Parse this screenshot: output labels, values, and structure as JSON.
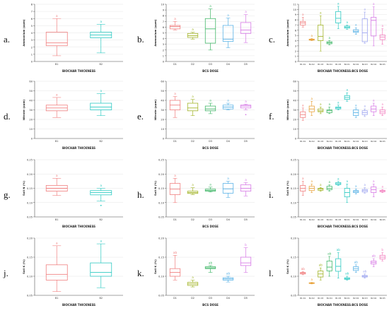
{
  "colors": {
    "axis": "#555555",
    "grid": "#e6e6e6",
    "g1": "#f08080",
    "g2": "#e8a33d",
    "g3": "#a3b52a",
    "g4": "#43b86a",
    "g5": "#2ec9c2",
    "g6": "#5ab2e6",
    "g7": "#9fa6f0",
    "g8": "#d77be6",
    "g9": "#f27fbf"
  },
  "chart_data": [
    {
      "panel": "a.",
      "type": "box",
      "xlabel": "BIOCHAR THICKNESS",
      "ylabel": "Ammonium (ppm)",
      "ylim": [
        0,
        8
      ],
      "yticks": [
        "0",
        "1",
        "2",
        "3",
        "4",
        "5",
        "6",
        "7",
        "8"
      ],
      "categories": [
        "B1",
        "B2"
      ],
      "boxes": [
        {
          "min": 0.8,
          "q1": 2.2,
          "median": 2.6,
          "q3": 4.1,
          "max": 6.0,
          "outliers": [],
          "letter": "a"
        },
        {
          "min": 1.2,
          "q1": 3.3,
          "median": 3.7,
          "q3": 4.1,
          "max": 5.2,
          "outliers": [],
          "letter": "a"
        }
      ]
    },
    {
      "panel": "b.",
      "type": "box",
      "xlabel": "BCS DOSE",
      "ylabel": "Ammonium (ppm)",
      "ylim": [
        0,
        10
      ],
      "yticks": [
        "0",
        "1",
        "2",
        "3",
        "4",
        "5",
        "6",
        "7",
        "8",
        "9",
        "10"
      ],
      "categories": [
        "D1",
        "D2",
        "D3",
        "D4",
        "D5"
      ],
      "boxes": [
        {
          "min": 5.5,
          "q1": 5.7,
          "median": 6.1,
          "q3": 6.3,
          "max": 7.0,
          "outliers": [],
          "letter": "a"
        },
        {
          "min": 3.9,
          "q1": 4.2,
          "median": 4.5,
          "q3": 4.9,
          "max": 5.1,
          "outliers": [],
          "letter": "a"
        },
        {
          "min": 2.0,
          "q1": 3.2,
          "median": 5.7,
          "q3": 7.5,
          "max": 9.2,
          "outliers": [],
          "letter": "a"
        },
        {
          "min": 2.4,
          "q1": 3.5,
          "median": 3.9,
          "q3": 6.3,
          "max": 7.6,
          "outliers": [],
          "letter": "a"
        },
        {
          "min": 3.3,
          "q1": 4.9,
          "median": 5.5,
          "q3": 6.8,
          "max": 8.2,
          "outliers": [],
          "letter": "a"
        }
      ]
    },
    {
      "panel": "c.",
      "type": "box",
      "xlabel": "BIOCHAR THICKNESS:BCS DOSE",
      "ylabel": "Ammonium (ppm)",
      "ylim": [
        0,
        11
      ],
      "yticks": [
        "0",
        "1",
        "2",
        "3",
        "4",
        "5",
        "6",
        "7",
        "8",
        "9",
        "10",
        "11"
      ],
      "categories": [
        "B1:D1",
        "B1:D2",
        "B1:D3",
        "B1:D4",
        "B1:D5",
        "B2:D1",
        "B2:D2",
        "B2:D3",
        "B2:D4",
        "B2:D5"
      ],
      "boxes": [
        {
          "min": 6.6,
          "q1": 7.0,
          "median": 7.4,
          "q3": 7.7,
          "max": 8.5,
          "outliers": [],
          "letter": "a"
        },
        {
          "min": 4.0,
          "q1": 4.1,
          "median": 4.2,
          "q3": 4.3,
          "max": 4.4,
          "outliers": [],
          "letter": "a"
        },
        {
          "min": 2.0,
          "q1": 4.0,
          "median": 4.8,
          "q3": 7.0,
          "max": 8.8,
          "outliers": [],
          "letter": "a"
        },
        {
          "min": 3.2,
          "q1": 3.4,
          "median": 3.6,
          "q3": 3.8,
          "max": 4.0,
          "outliers": [],
          "letter": "a"
        },
        {
          "min": 6.3,
          "q1": 7.4,
          "median": 8.3,
          "q3": 9.6,
          "max": 10.6,
          "outliers": [],
          "letter": "a"
        },
        {
          "min": 6.2,
          "q1": 6.4,
          "median": 6.6,
          "q3": 6.8,
          "max": 7.0,
          "outliers": [],
          "letter": "a"
        },
        {
          "min": 5.2,
          "q1": 5.6,
          "median": 5.8,
          "q3": 6.1,
          "max": 6.5,
          "outliers": [],
          "letter": "a"
        },
        {
          "min": 3.5,
          "q1": 3.8,
          "median": 5.5,
          "q3": 8.2,
          "max": 9.5,
          "outliers": [],
          "letter": "a"
        },
        {
          "min": 3.0,
          "q1": 4.9,
          "median": 7.9,
          "q3": 8.5,
          "max": 10.5,
          "outliers": [],
          "letter": "a"
        },
        {
          "min": 3.3,
          "q1": 4.2,
          "median": 4.7,
          "q3": 5.1,
          "max": 6.3,
          "outliers": [],
          "letter": "a"
        }
      ]
    },
    {
      "panel": "d.",
      "type": "box",
      "xlabel": "BIOCHAR THICKNESS",
      "ylabel": "Nitrate (ppm)",
      "ylim": [
        0,
        60
      ],
      "yticks": [
        "0",
        "10",
        "20",
        "30",
        "40",
        "50",
        "60"
      ],
      "categories": [
        "B1",
        "B2"
      ],
      "boxes": [
        {
          "min": 22,
          "q1": 29,
          "median": 32,
          "q3": 35,
          "max": 43,
          "outliers": [],
          "letter": "a"
        },
        {
          "min": 24,
          "q1": 30,
          "median": 33,
          "q3": 37,
          "max": 47,
          "outliers": [],
          "letter": "a"
        }
      ]
    },
    {
      "panel": "e.",
      "type": "box",
      "xlabel": "BCS DOSE",
      "ylabel": "Nitrate (ppm)",
      "ylim": [
        0,
        60
      ],
      "yticks": [
        "0",
        "10",
        "20",
        "30",
        "40",
        "50",
        "60"
      ],
      "categories": [
        "D1",
        "D2",
        "D3",
        "D4",
        "D5"
      ],
      "boxes": [
        {
          "min": 22,
          "q1": 30,
          "median": 35,
          "q3": 40,
          "max": 44,
          "outliers": [],
          "letter": "a"
        },
        {
          "min": 24,
          "q1": 29,
          "median": 32,
          "q3": 37,
          "max": 41,
          "outliers": [],
          "letter": "a"
        },
        {
          "min": 26,
          "q1": 29,
          "median": 31,
          "q3": 34,
          "max": 37,
          "outliers": [],
          "letter": "a"
        },
        {
          "min": 30,
          "q1": 31,
          "median": 33,
          "q3": 35,
          "max": 37,
          "outliers": [],
          "letter": "a"
        },
        {
          "min": 30,
          "q1": 32,
          "median": 34,
          "q3": 35,
          "max": 36,
          "outliers": [
            25
          ],
          "letter": "a"
        }
      ]
    },
    {
      "panel": "f.",
      "type": "box",
      "xlabel": "BIOCHAR THICKNESS:BCS DOSE",
      "ylabel": "Nitrate (ppm)",
      "ylim": [
        0,
        60
      ],
      "yticks": [
        "0",
        "10",
        "20",
        "30",
        "40",
        "50",
        "60"
      ],
      "categories": [
        "B1:D1",
        "B1:D2",
        "B1:D3",
        "B1:D4",
        "B1:D5",
        "B2:D1",
        "B2:D2",
        "B2:D3",
        "B2:D4",
        "B2:D5"
      ],
      "boxes": [
        {
          "min": 19,
          "q1": 22,
          "median": 25,
          "q3": 28,
          "max": 32,
          "outliers": [],
          "letter": "a"
        },
        {
          "min": 24,
          "q1": 28,
          "median": 31,
          "q3": 34,
          "max": 39,
          "outliers": [],
          "letter": "a"
        },
        {
          "min": 26,
          "q1": 28,
          "median": 29,
          "q3": 31,
          "max": 33,
          "outliers": [],
          "letter": "a"
        },
        {
          "min": 26,
          "q1": 27,
          "median": 29,
          "q3": 30,
          "max": 33,
          "outliers": [],
          "letter": "a"
        },
        {
          "min": 30,
          "q1": 31,
          "median": 32,
          "q3": 33,
          "max": 35,
          "outliers": [],
          "letter": "a"
        },
        {
          "min": 39,
          "q1": 41,
          "median": 43,
          "q3": 45,
          "max": 48,
          "outliers": [],
          "letter": "a"
        },
        {
          "min": 22,
          "q1": 24,
          "median": 27,
          "q3": 30,
          "max": 32,
          "outliers": [],
          "letter": "a"
        },
        {
          "min": 23,
          "q1": 25,
          "median": 27,
          "q3": 29,
          "max": 31,
          "outliers": [],
          "letter": "a"
        },
        {
          "min": 24,
          "q1": 28,
          "median": 31,
          "q3": 34,
          "max": 37,
          "outliers": [],
          "letter": "a"
        },
        {
          "min": 24,
          "q1": 26,
          "median": 28,
          "q3": 30,
          "max": 33,
          "outliers": [],
          "letter": "a"
        }
      ]
    },
    {
      "panel": "g.",
      "type": "box",
      "xlabel": "BIOCHAR THICKNESS",
      "ylabel": "Soil N (%)",
      "ylim": [
        0.05,
        0.25
      ],
      "yticks": [
        "0.05",
        "0.10",
        "0.15",
        "0.20",
        "0.25"
      ],
      "categories": [
        "B1",
        "B2"
      ],
      "boxes": [
        {
          "min": 0.125,
          "q1": 0.14,
          "median": 0.15,
          "q3": 0.16,
          "max": 0.185,
          "outliers": [],
          "letter": "a"
        },
        {
          "min": 0.105,
          "q1": 0.127,
          "median": 0.135,
          "q3": 0.142,
          "max": 0.15,
          "outliers": [
            0.09
          ],
          "letter": "a"
        }
      ]
    },
    {
      "panel": "h.",
      "type": "box",
      "xlabel": "BCS DOSE",
      "ylabel": "Soil N (%)",
      "ylim": [
        0.05,
        0.25
      ],
      "yticks": [
        "0.05",
        "0.10",
        "0.15",
        "0.20",
        "0.25"
      ],
      "categories": [
        "D1",
        "D2",
        "D3",
        "D4",
        "D5"
      ],
      "boxes": [
        {
          "min": 0.1,
          "q1": 0.128,
          "median": 0.147,
          "q3": 0.167,
          "max": 0.185,
          "outliers": [],
          "letter": "a"
        },
        {
          "min": 0.128,
          "q1": 0.132,
          "median": 0.135,
          "q3": 0.14,
          "max": 0.152,
          "outliers": [],
          "letter": "a"
        },
        {
          "min": 0.137,
          "q1": 0.14,
          "median": 0.143,
          "q3": 0.147,
          "max": 0.154,
          "outliers": [],
          "letter": "a"
        },
        {
          "min": 0.118,
          "q1": 0.133,
          "median": 0.148,
          "q3": 0.167,
          "max": 0.175,
          "outliers": [],
          "letter": "a"
        },
        {
          "min": 0.123,
          "q1": 0.14,
          "median": 0.15,
          "q3": 0.162,
          "max": 0.17,
          "outliers": [],
          "letter": "a"
        }
      ]
    },
    {
      "panel": "i.",
      "type": "box",
      "xlabel": "BIOCHAR THICKNESS:BCS DOSE",
      "ylabel": "Soil N (%)",
      "ylim": [
        0.05,
        0.25
      ],
      "yticks": [
        "0.05",
        "0.10",
        "0.15",
        "0.20",
        "0.25"
      ],
      "categories": [
        "B1:D1",
        "B1:D2",
        "B1:D3",
        "B1:D4",
        "B1:D5",
        "B2:D1",
        "B2:D2",
        "B2:D3",
        "B2:D4",
        "B2:D5"
      ],
      "boxes": [
        {
          "min": 0.125,
          "q1": 0.14,
          "median": 0.15,
          "q3": 0.16,
          "max": 0.175,
          "outliers": [],
          "letter": "a"
        },
        {
          "min": 0.135,
          "q1": 0.142,
          "median": 0.15,
          "q3": 0.157,
          "max": 0.165,
          "outliers": [],
          "letter": "a"
        },
        {
          "min": 0.14,
          "q1": 0.143,
          "median": 0.147,
          "q3": 0.15,
          "max": 0.153,
          "outliers": [],
          "letter": "a"
        },
        {
          "min": 0.14,
          "q1": 0.145,
          "median": 0.15,
          "q3": 0.157,
          "max": 0.162,
          "outliers": [],
          "letter": "a"
        },
        {
          "min": 0.16,
          "q1": 0.163,
          "median": 0.166,
          "q3": 0.17,
          "max": 0.174,
          "outliers": [],
          "letter": "a"
        },
        {
          "min": 0.1,
          "q1": 0.12,
          "median": 0.135,
          "q3": 0.15,
          "max": 0.165,
          "outliers": [],
          "letter": "a"
        },
        {
          "min": 0.13,
          "q1": 0.135,
          "median": 0.139,
          "q3": 0.142,
          "max": 0.148,
          "outliers": [],
          "letter": "a"
        },
        {
          "min": 0.133,
          "q1": 0.137,
          "median": 0.142,
          "q3": 0.146,
          "max": 0.152,
          "outliers": [],
          "letter": "a"
        },
        {
          "min": 0.12,
          "q1": 0.135,
          "median": 0.145,
          "q3": 0.155,
          "max": 0.165,
          "outliers": [],
          "letter": "a"
        },
        {
          "min": 0.135,
          "q1": 0.138,
          "median": 0.141,
          "q3": 0.143,
          "max": 0.146,
          "outliers": [],
          "letter": "a"
        }
      ]
    },
    {
      "panel": "j.",
      "type": "box",
      "xlabel": "BIOCHAR THICKNESS",
      "ylabel": "Soil K (%)",
      "ylim": [
        0.05,
        0.2
      ],
      "yticks": [
        "0.05",
        "0.10",
        "0.15",
        "0.20"
      ],
      "categories": [
        "B1",
        "B2"
      ],
      "boxes": [
        {
          "min": 0.06,
          "q1": 0.09,
          "median": 0.105,
          "q3": 0.13,
          "max": 0.18,
          "outliers": [],
          "letter": "a"
        },
        {
          "min": 0.07,
          "q1": 0.1,
          "median": 0.11,
          "q3": 0.135,
          "max": 0.185,
          "outliers": [],
          "letter": "a"
        }
      ]
    },
    {
      "panel": "k.",
      "type": "box",
      "xlabel": "BCS DOSE",
      "ylabel": "Soil K (%)",
      "ylim": [
        0.05,
        0.2
      ],
      "yticks": [
        "0.05",
        "0.10",
        "0.15",
        "0.20"
      ],
      "categories": [
        "D1",
        "D2",
        "D3",
        "D4",
        "D5"
      ],
      "boxes": [
        {
          "min": 0.09,
          "q1": 0.1,
          "median": 0.11,
          "q3": 0.12,
          "max": 0.155,
          "outliers": [],
          "letter": "ab"
        },
        {
          "min": 0.072,
          "q1": 0.076,
          "median": 0.08,
          "q3": 0.084,
          "max": 0.09,
          "outliers": [],
          "letter": "a"
        },
        {
          "min": 0.11,
          "q1": 0.12,
          "median": 0.122,
          "q3": 0.125,
          "max": 0.128,
          "outliers": [],
          "letter": "ab"
        },
        {
          "min": 0.085,
          "q1": 0.09,
          "median": 0.093,
          "q3": 0.096,
          "max": 0.1,
          "outliers": [],
          "letter": "ab"
        },
        {
          "min": 0.11,
          "q1": 0.128,
          "median": 0.135,
          "q3": 0.15,
          "max": 0.175,
          "outliers": [],
          "letter": "b"
        }
      ]
    },
    {
      "panel": "l.",
      "type": "box",
      "xlabel": "BIOCHAR THICKNESS:BCS DOSE",
      "ylabel": "Soil K (%)",
      "ylim": [
        0.05,
        0.2
      ],
      "yticks": [
        "0.05",
        "0.10",
        "0.15",
        "0.20"
      ],
      "categories": [
        "B1:D1",
        "B1:D2",
        "B1:D3",
        "B1:D4",
        "B1:D5",
        "B2:D1",
        "B2:D2",
        "B2:D3",
        "B2:D4",
        "B2:D5"
      ],
      "boxes": [
        {
          "min": 0.104,
          "q1": 0.106,
          "median": 0.108,
          "q3": 0.11,
          "max": 0.112,
          "outliers": [],
          "letter": "ab"
        },
        {
          "min": 0.08,
          "q1": 0.081,
          "median": 0.082,
          "q3": 0.083,
          "max": 0.084,
          "outliers": [],
          "letter": "a"
        },
        {
          "min": 0.09,
          "q1": 0.098,
          "median": 0.106,
          "q3": 0.114,
          "max": 0.122,
          "outliers": [],
          "letter": "ab"
        },
        {
          "min": 0.1,
          "q1": 0.114,
          "median": 0.124,
          "q3": 0.14,
          "max": 0.152,
          "outliers": [],
          "letter": "ab"
        },
        {
          "min": 0.095,
          "q1": 0.113,
          "median": 0.126,
          "q3": 0.146,
          "max": 0.162,
          "outliers": [],
          "letter": "ab"
        },
        {
          "min": 0.09,
          "q1": 0.092,
          "median": 0.094,
          "q3": 0.096,
          "max": 0.1,
          "outliers": [],
          "letter": "ab"
        },
        {
          "min": 0.11,
          "q1": 0.115,
          "median": 0.12,
          "q3": 0.125,
          "max": 0.13,
          "outliers": [],
          "letter": "ab"
        },
        {
          "min": 0.095,
          "q1": 0.098,
          "median": 0.1,
          "q3": 0.102,
          "max": 0.106,
          "outliers": [],
          "letter": "ab"
        },
        {
          "min": 0.125,
          "q1": 0.132,
          "median": 0.136,
          "q3": 0.14,
          "max": 0.146,
          "outliers": [],
          "letter": "ab"
        },
        {
          "min": 0.14,
          "q1": 0.145,
          "median": 0.15,
          "q3": 0.155,
          "max": 0.162,
          "outliers": [],
          "letter": "b"
        }
      ]
    }
  ]
}
